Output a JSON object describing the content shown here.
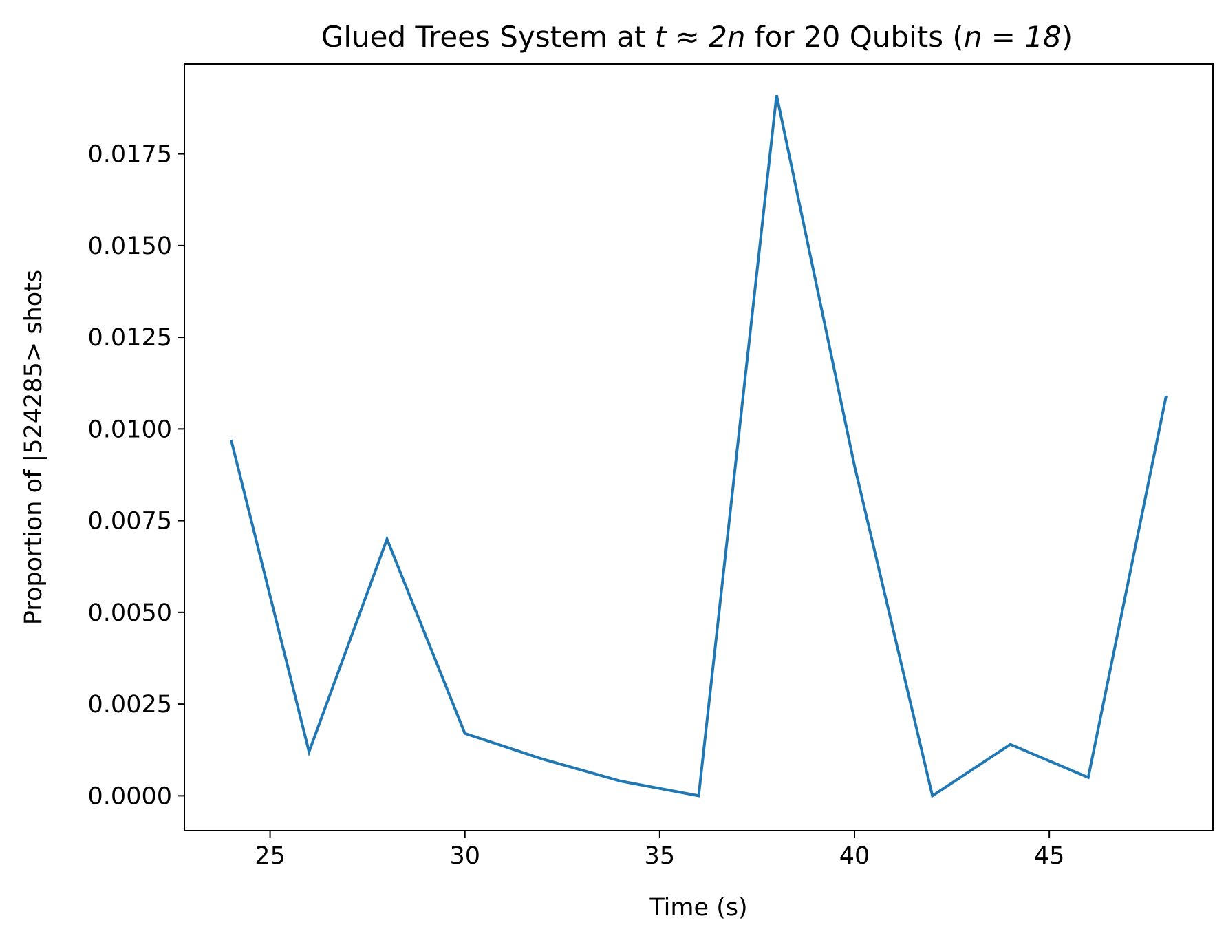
{
  "chart_data": {
    "type": "line",
    "title": {
      "prefix": "Glued Trees System at ",
      "math1": "t ≈ 2n",
      "middle": " for 20 Qubits (",
      "math2": "n = 18",
      "suffix": ")"
    },
    "xlabel": "Time (s)",
    "ylabel": "Proportion of |524285> shots",
    "xlim": [
      22.8,
      49.2
    ],
    "ylim": [
      -0.00095,
      0.01995
    ],
    "x_ticks": [
      25,
      30,
      35,
      40,
      45
    ],
    "x_tick_labels": [
      "25",
      "30",
      "35",
      "40",
      "45"
    ],
    "y_ticks": [
      0,
      0.0025,
      0.005,
      0.0075,
      0.01,
      0.0125,
      0.015,
      0.0175
    ],
    "y_tick_labels": [
      "0.0000",
      "0.0025",
      "0.0050",
      "0.0075",
      "0.0100",
      "0.0125",
      "0.0150",
      "0.0175"
    ],
    "grid": false,
    "legend": "none",
    "series": [
      {
        "color": "#1f77b4",
        "x": [
          24,
          26,
          28,
          30,
          32,
          34,
          36,
          38,
          40,
          42,
          44,
          46,
          48
        ],
        "y": [
          0.0097,
          0.0012,
          0.007,
          0.0017,
          0.001,
          0.0004,
          0.0,
          0.0191,
          0.009,
          0.0,
          0.0014,
          0.0005,
          0.0109
        ]
      }
    ]
  }
}
